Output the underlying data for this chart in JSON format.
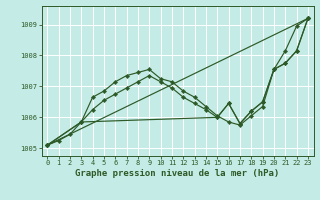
{
  "xlabel": "Graphe pression niveau de la mer (hPa)",
  "bg_color": "#c5ebe6",
  "grid_color": "#ffffff",
  "line_color": "#2d5a27",
  "xlim": [
    -0.5,
    23.5
  ],
  "ylim": [
    1004.75,
    1009.6
  ],
  "yticks": [
    1005,
    1006,
    1007,
    1008,
    1009
  ],
  "xticks": [
    0,
    1,
    2,
    3,
    4,
    5,
    6,
    7,
    8,
    9,
    10,
    11,
    12,
    13,
    14,
    15,
    16,
    17,
    18,
    19,
    20,
    21,
    22,
    23
  ],
  "lines": [
    {
      "x": [
        0,
        1,
        2,
        3,
        4,
        5,
        6,
        7,
        8,
        9,
        10,
        11,
        12,
        13,
        14,
        15,
        16,
        17,
        18,
        19,
        20,
        21,
        22,
        23
      ],
      "y": [
        1005.1,
        1005.25,
        1005.45,
        1005.85,
        1006.65,
        1006.85,
        1007.15,
        1007.35,
        1007.45,
        1007.55,
        1007.25,
        1007.15,
        1006.85,
        1006.65,
        1006.35,
        1006.05,
        1005.85,
        1005.75,
        1006.05,
        1006.35,
        1007.55,
        1008.15,
        1008.95,
        1009.2
      ]
    },
    {
      "x": [
        0,
        23
      ],
      "y": [
        1005.1,
        1009.2
      ]
    },
    {
      "x": [
        0,
        3,
        4,
        5,
        6,
        7,
        8,
        9,
        10,
        11,
        12,
        13,
        14,
        15,
        16,
        17,
        18,
        19,
        20,
        21,
        22,
        23
      ],
      "y": [
        1005.1,
        1005.85,
        1006.25,
        1006.55,
        1006.75,
        1006.95,
        1007.15,
        1007.35,
        1007.15,
        1006.95,
        1006.65,
        1006.45,
        1006.25,
        1006.0,
        1006.45,
        1005.8,
        1006.2,
        1006.5,
        1007.55,
        1007.75,
        1008.15,
        1009.2
      ]
    },
    {
      "x": [
        0,
        3,
        15,
        16,
        17,
        18,
        19,
        20,
        21,
        22,
        23
      ],
      "y": [
        1005.1,
        1005.85,
        1006.0,
        1006.45,
        1005.8,
        1006.2,
        1006.5,
        1007.55,
        1007.75,
        1008.15,
        1009.2
      ]
    }
  ]
}
